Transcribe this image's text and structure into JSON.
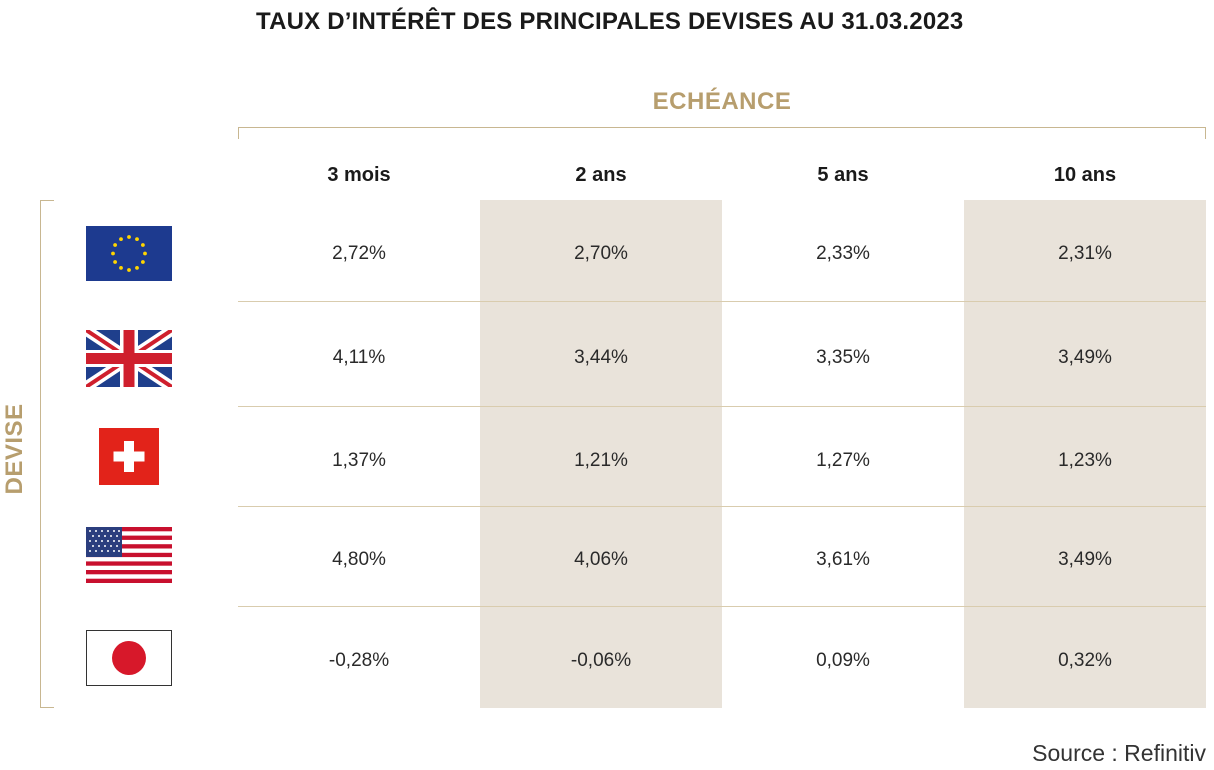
{
  "title": "TAUX D’INTÉRÊT DES PRINCIPALES DEVISES AU 31.03.2023",
  "echeance_label": "ECHÉANCE",
  "devise_label": "DEVISE",
  "source": "Source : Refinitiv",
  "colors": {
    "accent": "#b79e6e",
    "shade": "#e9e3da",
    "line": "#d9ccae"
  },
  "chart_data": {
    "type": "table",
    "title": "TAUX D’INTÉRÊT DES PRINCIPALES DEVISES AU 31.03.2023",
    "columns": [
      "3 mois",
      "2 ans",
      "5 ans",
      "10 ans"
    ],
    "rows": [
      {
        "flag": "eu-flag-icon",
        "values": [
          "2,72%",
          "2,70%",
          "2,33%",
          "2,31%"
        ]
      },
      {
        "flag": "uk-flag-icon",
        "values": [
          "4,11%",
          "3,44%",
          "3,35%",
          "3,49%"
        ]
      },
      {
        "flag": "switzerland-flag-icon",
        "values": [
          "1,37%",
          "1,21%",
          "1,27%",
          "1,23%"
        ]
      },
      {
        "flag": "usa-flag-icon",
        "values": [
          "4,80%",
          "4,06%",
          "3,61%",
          "3,49%"
        ]
      },
      {
        "flag": "japan-flag-icon",
        "values": [
          "-0,28%",
          "-0,06%",
          "0,09%",
          "0,32%"
        ]
      }
    ]
  }
}
